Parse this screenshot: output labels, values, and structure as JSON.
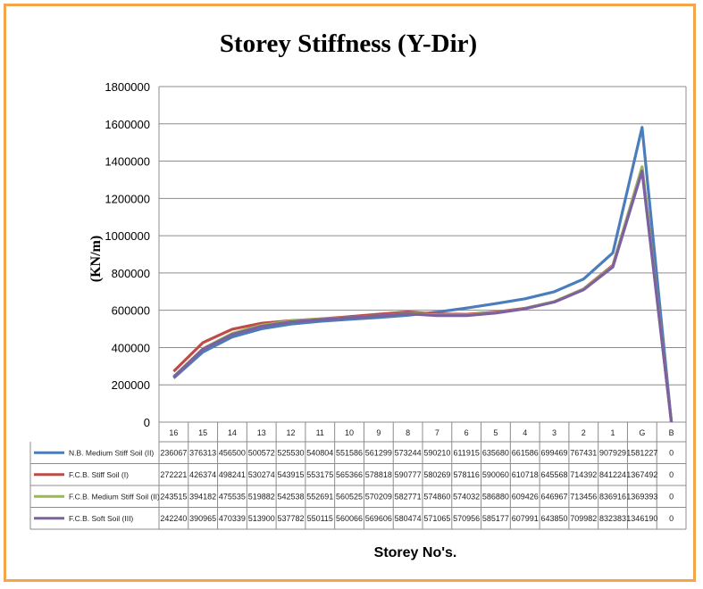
{
  "chart_data": {
    "type": "line",
    "title": "Storey Stiffness (Y-Dir)",
    "ylabel": "(KN/m)",
    "xlabel": "Storey No's.",
    "ylim": [
      0,
      1800000
    ],
    "yticks": [
      "0",
      "200000",
      "400000",
      "600000",
      "800000",
      "1000000",
      "1200000",
      "1400000",
      "1600000",
      "1800000"
    ],
    "grid": true,
    "legend": "data-table-below",
    "categories": [
      "16",
      "15",
      "14",
      "13",
      "12",
      "11",
      "10",
      "9",
      "8",
      "7",
      "6",
      "5",
      "4",
      "3",
      "2",
      "1",
      "G",
      "B"
    ],
    "series": [
      {
        "name": "N.B. Medium Stiff Soil (II)",
        "color": "#4a7ebb",
        "values": [
          236067,
          376313,
          456500,
          500572,
          525530,
          540804,
          551586,
          561299,
          573244,
          590210,
          611915,
          635680,
          661586,
          699469,
          767431,
          907929,
          1581227,
          0
        ]
      },
      {
        "name": "F.C.B. Stiff Soil (I)",
        "color": "#be4b48",
        "values": [
          272221,
          426374,
          498241,
          530274,
          543915,
          553175,
          565366,
          578818,
          590777,
          580269,
          578116,
          590060,
          610718,
          645568,
          714392,
          841224,
          1367492,
          0
        ]
      },
      {
        "name": "F.C.B. Medium Stiff Soil (II)",
        "color": "#98b954",
        "values": [
          243515,
          394182,
          475535,
          519882,
          542538,
          552691,
          560525,
          570209,
          582771,
          574860,
          574032,
          586880,
          609426,
          646967,
          713456,
          836916,
          1369393,
          0
        ]
      },
      {
        "name": "F.C.B. Soft Soil (III)",
        "color": "#7d60a0",
        "values": [
          242240,
          390965,
          470339,
          513900,
          537782,
          550115,
          560066,
          569606,
          580474,
          571065,
          570956,
          585177,
          607991,
          643850,
          709982,
          832383,
          1346190,
          0
        ]
      }
    ]
  }
}
